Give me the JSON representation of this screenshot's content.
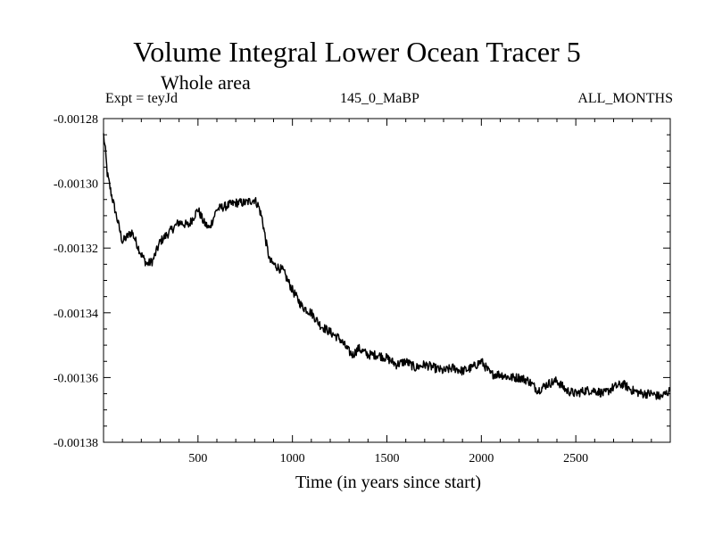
{
  "chart_data": {
    "type": "line",
    "title": "Volume Integral Lower Ocean Tracer 5",
    "subtitle": "Whole area",
    "experiment": "Expt = teyJd",
    "period": "145_0_MaBP",
    "months": "ALL_MONTHS",
    "xlabel": "Time (in years since start)",
    "ylabel": "",
    "xlim": [
      0,
      3000
    ],
    "ylim": [
      -0.00138,
      -0.00128
    ],
    "xticks": [
      500,
      1000,
      1500,
      2000,
      2500
    ],
    "yticks": [
      -0.00138,
      -0.00136,
      -0.00134,
      -0.00132,
      -0.0013,
      -0.00128
    ],
    "ytick_labels": [
      "-0.00138",
      "-0.00136",
      "-0.00134",
      "-0.00132",
      "-0.00130",
      "-0.00128"
    ],
    "series": [
      {
        "name": "Volume Integral Lower Ocean Tracer 5",
        "x": [
          0,
          10,
          20,
          40,
          60,
          100,
          150,
          200,
          230,
          260,
          300,
          350,
          400,
          450,
          500,
          530,
          560,
          600,
          650,
          700,
          750,
          800,
          820,
          840,
          860,
          880,
          900,
          950,
          1000,
          1050,
          1100,
          1150,
          1200,
          1250,
          1300,
          1320,
          1350,
          1400,
          1450,
          1500,
          1550,
          1600,
          1650,
          1700,
          1750,
          1800,
          1850,
          1900,
          1950,
          2000,
          2050,
          2100,
          2150,
          2200,
          2250,
          2300,
          2350,
          2400,
          2450,
          2500,
          2550,
          2600,
          2650,
          2700,
          2750,
          2800,
          2850,
          2900,
          2950,
          3000
        ],
        "values": [
          -0.001285,
          -0.00129,
          -0.001297,
          -0.001303,
          -0.001308,
          -0.001318,
          -0.001315,
          -0.001322,
          -0.001325,
          -0.001324,
          -0.001318,
          -0.001315,
          -0.001312,
          -0.001313,
          -0.001308,
          -0.001312,
          -0.001314,
          -0.001308,
          -0.001307,
          -0.001306,
          -0.001306,
          -0.001305,
          -0.001307,
          -0.001311,
          -0.001318,
          -0.001324,
          -0.001325,
          -0.001327,
          -0.001333,
          -0.001338,
          -0.00134,
          -0.001344,
          -0.001346,
          -0.001348,
          -0.001352,
          -0.001353,
          -0.001351,
          -0.001353,
          -0.001353,
          -0.001354,
          -0.001356,
          -0.001355,
          -0.001357,
          -0.001356,
          -0.001357,
          -0.001358,
          -0.001357,
          -0.001358,
          -0.001357,
          -0.001355,
          -0.001359,
          -0.001359,
          -0.00136,
          -0.00136,
          -0.001361,
          -0.001364,
          -0.001362,
          -0.001361,
          -0.001364,
          -0.001365,
          -0.001364,
          -0.001364,
          -0.001365,
          -0.001363,
          -0.001362,
          -0.001364,
          -0.001365,
          -0.001365,
          -0.001366,
          -0.001364
        ]
      }
    ]
  }
}
